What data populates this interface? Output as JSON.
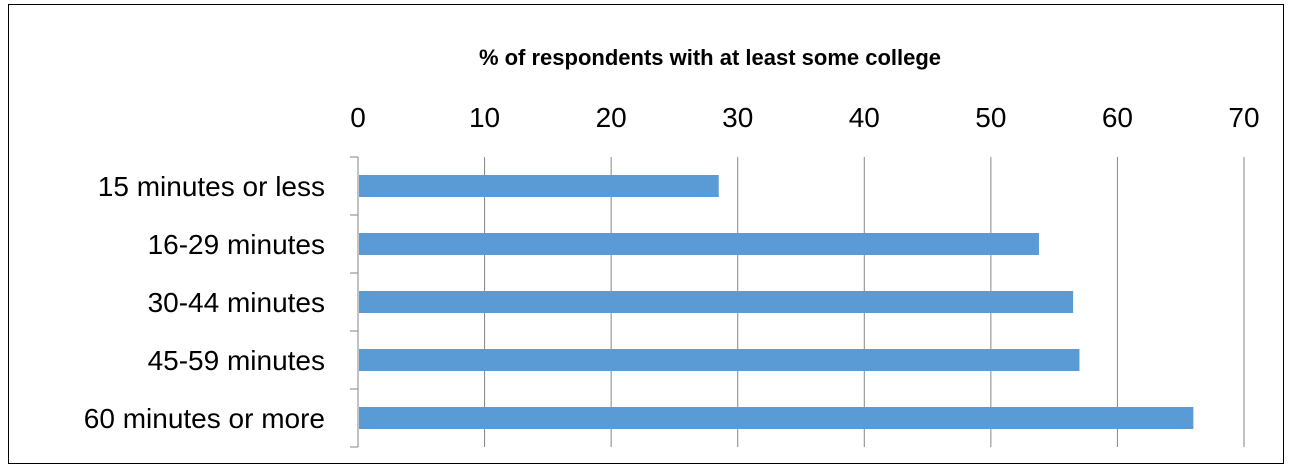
{
  "chart_data": {
    "type": "bar",
    "orientation": "horizontal",
    "title": "% of respondents with at least some college",
    "xlabel": "",
    "ylabel": "",
    "categories": [
      "15 minutes or less",
      "16-29 minutes",
      "30-44 minutes",
      "45-59 minutes",
      "60 minutes or more"
    ],
    "values": [
      28.5,
      53.8,
      56.5,
      57.0,
      66.0
    ],
    "xlim": [
      0,
      70
    ],
    "ticks": [
      "0",
      "10",
      "20",
      "30",
      "40",
      "50",
      "60",
      "70"
    ],
    "x_axis_position": "top",
    "grid": true,
    "legend": "none",
    "bar_color": "#5B9BD5",
    "grid_color": "#868686"
  }
}
